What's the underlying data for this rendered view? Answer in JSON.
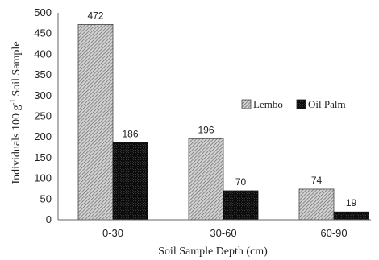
{
  "chart_data": {
    "type": "bar",
    "categories": [
      "0-30",
      "30-60",
      "60-90"
    ],
    "series": [
      {
        "name": "Lembo",
        "values": [
          472,
          196,
          74
        ],
        "pattern": "diagonal-hatch",
        "color": "#9a9a9a"
      },
      {
        "name": "Oil Palm",
        "values": [
          186,
          70,
          19
        ],
        "pattern": "dense-dark",
        "color": "#1c1c1c"
      }
    ],
    "xlabel": "Soil Sample Depth (cm)",
    "ylabel_parts": [
      "Individuals 100 g",
      "-1",
      " Soil Sample"
    ],
    "ylim": [
      0,
      500
    ],
    "yticks": [
      0,
      50,
      100,
      150,
      200,
      250,
      300,
      350,
      400,
      450,
      500
    ],
    "grid": false,
    "legend_position": "right",
    "data_labels": true
  }
}
